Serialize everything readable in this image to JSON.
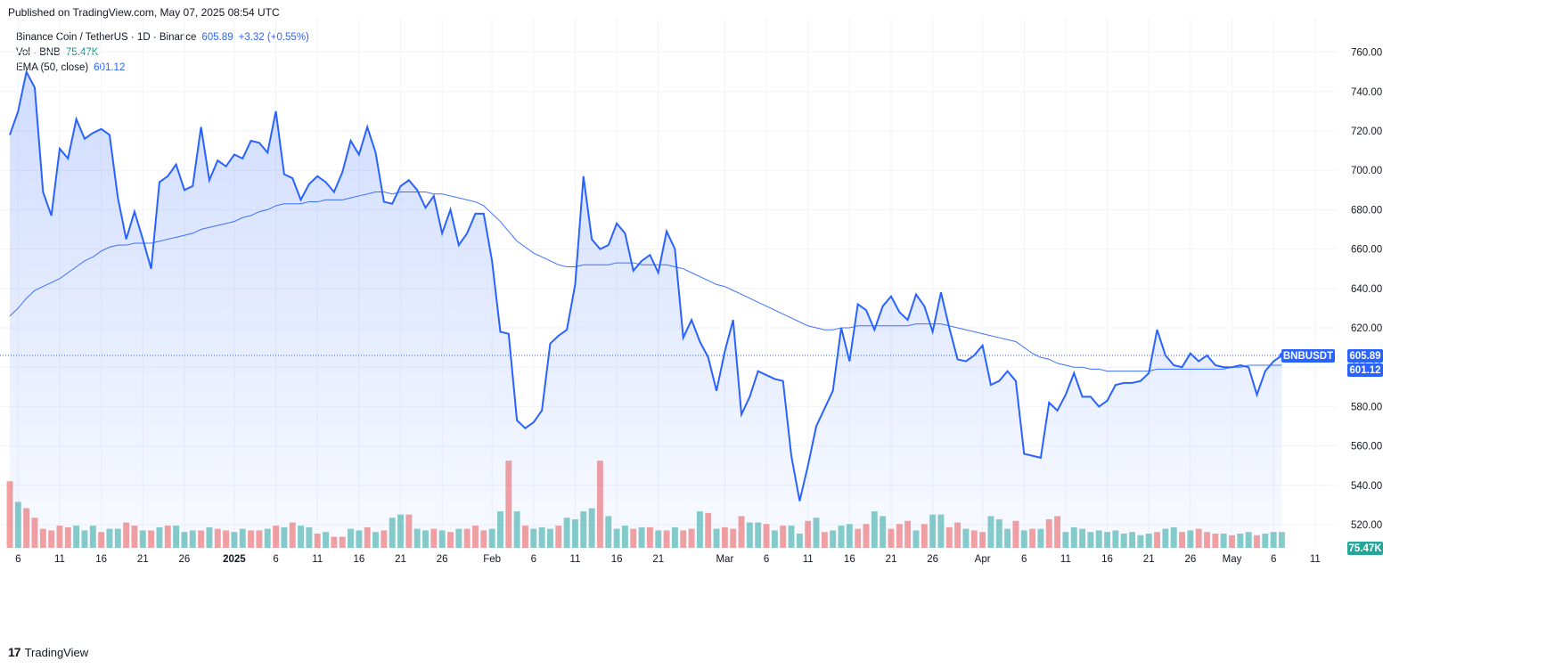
{
  "published": "Published on TradingView.com, May 07, 2025 08:54 UTC",
  "legend": {
    "symbol": "Binance Coin / TetherUS · 1D · Binance",
    "price": "605.89",
    "change": "+3.32 (+0.55%)",
    "vol_label": "Vol · BNB",
    "vol_value": "75.47K",
    "ema_label": "EMA (50, close)",
    "ema_value": "601.12"
  },
  "tags": {
    "symbol": "BNBUSDT",
    "price": "605.89",
    "ema": "601.12",
    "volume": "75.47K"
  },
  "footer": {
    "logo": "17",
    "brand": "TradingView"
  },
  "colors": {
    "line": "#2962ff",
    "up": "#26a69a",
    "down": "#ef5350",
    "grid": "#f0f3fa"
  },
  "chart_data": {
    "type": "area",
    "ylim": [
      520,
      770
    ],
    "y_ticks": [
      520,
      540,
      560,
      580,
      600,
      620,
      640,
      660,
      680,
      700,
      720,
      740,
      760
    ],
    "x_tick_labels": [
      {
        "label": "6",
        "date": "2024-12-06"
      },
      {
        "label": "11",
        "date": "2024-12-11"
      },
      {
        "label": "16",
        "date": "2024-12-16"
      },
      {
        "label": "21",
        "date": "2024-12-21"
      },
      {
        "label": "26",
        "date": "2024-12-26"
      },
      {
        "label": "2025",
        "date": "2025-01-01",
        "bold": true
      },
      {
        "label": "6",
        "date": "2025-01-06"
      },
      {
        "label": "11",
        "date": "2025-01-11"
      },
      {
        "label": "16",
        "date": "2025-01-16"
      },
      {
        "label": "21",
        "date": "2025-01-21"
      },
      {
        "label": "26",
        "date": "2025-01-26"
      },
      {
        "label": "Feb",
        "date": "2025-02-01"
      },
      {
        "label": "6",
        "date": "2025-02-06"
      },
      {
        "label": "11",
        "date": "2025-02-11"
      },
      {
        "label": "16",
        "date": "2025-02-16"
      },
      {
        "label": "21",
        "date": "2025-02-21"
      },
      {
        "label": "Mar",
        "date": "2025-03-01"
      },
      {
        "label": "6",
        "date": "2025-03-06"
      },
      {
        "label": "11",
        "date": "2025-03-11"
      },
      {
        "label": "16",
        "date": "2025-03-16"
      },
      {
        "label": "21",
        "date": "2025-03-21"
      },
      {
        "label": "26",
        "date": "2025-03-26"
      },
      {
        "label": "Apr",
        "date": "2025-04-01"
      },
      {
        "label": "6",
        "date": "2025-04-06"
      },
      {
        "label": "11",
        "date": "2025-04-11"
      },
      {
        "label": "16",
        "date": "2025-04-16"
      },
      {
        "label": "21",
        "date": "2025-04-21"
      },
      {
        "label": "26",
        "date": "2025-04-26"
      },
      {
        "label": "May",
        "date": "2025-05-01"
      },
      {
        "label": "6",
        "date": "2025-05-06"
      },
      {
        "label": "11",
        "date": "2025-05-11"
      }
    ],
    "start_date": "2024-12-05",
    "series": [
      {
        "name": "Binance Coin / TetherUS",
        "values": [
          718,
          730,
          750,
          742,
          689,
          677,
          711,
          706,
          726,
          716,
          719,
          721,
          718,
          686,
          665,
          679,
          665,
          650,
          694,
          697,
          703,
          690,
          692,
          722,
          695,
          705,
          702,
          708,
          706,
          715,
          714,
          709,
          730,
          698,
          696,
          685,
          693,
          697,
          694,
          689,
          699,
          715,
          708,
          722,
          709,
          684,
          683,
          692,
          695,
          690,
          681,
          687,
          668,
          680,
          662,
          668,
          678,
          678,
          654,
          618,
          617,
          573,
          569,
          572,
          578,
          612,
          616,
          619,
          642,
          697,
          665,
          660,
          662,
          673,
          668,
          649,
          654,
          657,
          648,
          669,
          660,
          615,
          624,
          613,
          605,
          588,
          608,
          624,
          576,
          585,
          598,
          596,
          594,
          593,
          555,
          532,
          550,
          570,
          579,
          588,
          620,
          603,
          632,
          629,
          619,
          631,
          636,
          628,
          624,
          637,
          631,
          618,
          638,
          620,
          604,
          603,
          606,
          611,
          591,
          593,
          598,
          593,
          556,
          555,
          554,
          582,
          578,
          586,
          597,
          585,
          585,
          580,
          583,
          591,
          592,
          592,
          593,
          597,
          619,
          606,
          601,
          600,
          607,
          603,
          606,
          601,
          600,
          600,
          601,
          600,
          586,
          598,
          603,
          606
        ]
      },
      {
        "name": "EMA (50, close)",
        "values": [
          626,
          630,
          635,
          639,
          641,
          643,
          645,
          648,
          651,
          654,
          656,
          659,
          661,
          662,
          662,
          663,
          663,
          663,
          664,
          665,
          666,
          667,
          668,
          670,
          671,
          672,
          673,
          674,
          676,
          677,
          679,
          680,
          682,
          683,
          683,
          683,
          684,
          684,
          685,
          685,
          685,
          686,
          687,
          688,
          689,
          689,
          688,
          689,
          689,
          689,
          689,
          688,
          688,
          687,
          686,
          685,
          684,
          682,
          678,
          674,
          669,
          664,
          661,
          658,
          656,
          654,
          652,
          651,
          651,
          652,
          652,
          652,
          652,
          653,
          653,
          653,
          652,
          652,
          652,
          652,
          651,
          650,
          648,
          646,
          644,
          642,
          641,
          639,
          637,
          635,
          633,
          631,
          629,
          627,
          625,
          623,
          621,
          620,
          619,
          619,
          620,
          620,
          621,
          621,
          621,
          621,
          621,
          621,
          621,
          622,
          622,
          622,
          622,
          621,
          620,
          619,
          618,
          617,
          616,
          615,
          614,
          613,
          610,
          607,
          605,
          604,
          602,
          601,
          600,
          600,
          599,
          599,
          598,
          598,
          598,
          598,
          598,
          598,
          599,
          599,
          599,
          599,
          599,
          599,
          599,
          599,
          599,
          600,
          600,
          601,
          601,
          601,
          601,
          601
        ]
      },
      {
        "name": "Volume",
        "values": [
          42,
          29,
          25,
          19,
          12,
          11,
          14,
          13,
          14,
          11,
          14,
          10,
          12,
          12,
          16,
          14,
          11,
          11,
          13,
          14,
          14,
          10,
          11,
          11,
          13,
          12,
          11,
          10,
          12,
          11,
          11,
          12,
          14,
          13,
          16,
          14,
          13,
          9,
          10,
          7,
          7,
          12,
          11,
          13,
          10,
          11,
          19,
          21,
          21,
          12,
          11,
          12,
          11,
          10,
          12,
          12,
          14,
          11,
          12,
          23,
          55,
          23,
          14,
          12,
          13,
          12,
          14,
          19,
          18,
          23,
          25,
          55,
          20,
          12,
          14,
          12,
          13,
          13,
          11,
          11,
          13,
          11,
          12,
          23,
          22,
          12,
          13,
          12,
          20,
          16,
          16,
          15,
          11,
          14,
          14,
          9,
          17,
          19,
          10,
          11,
          14,
          15,
          12,
          15,
          23,
          20,
          12,
          15,
          17,
          11,
          15,
          21,
          21,
          13,
          16,
          12,
          11,
          10,
          20,
          18,
          12,
          17,
          11,
          12,
          12,
          18,
          20,
          10,
          13,
          12,
          10,
          11,
          10,
          11,
          9,
          10,
          8,
          9,
          10,
          12,
          13,
          10,
          11,
          12,
          10,
          9,
          9,
          8,
          9,
          10,
          8,
          9,
          10,
          10
        ],
        "up": [
          0,
          1,
          0,
          0,
          0,
          0,
          0,
          0,
          1,
          1,
          1,
          0,
          1,
          1,
          0,
          0,
          1,
          0,
          1,
          0,
          1,
          1,
          1,
          0,
          1,
          0,
          0,
          1,
          1,
          0,
          0,
          1,
          0,
          1,
          0,
          1,
          1,
          0,
          1,
          0,
          0,
          1,
          1,
          0,
          1,
          0,
          1,
          1,
          0,
          1,
          1,
          0,
          1,
          0,
          1,
          0,
          0,
          0,
          1,
          1,
          0,
          1,
          0,
          1,
          1,
          1,
          0,
          1,
          1,
          1,
          1,
          0,
          1,
          1,
          1,
          0,
          1,
          0,
          1,
          0,
          1,
          0,
          0,
          1,
          0,
          1,
          0,
          0,
          0,
          1,
          1,
          0,
          1,
          0,
          1,
          1,
          0,
          1,
          0,
          1,
          1,
          1,
          0,
          0,
          1,
          1,
          0,
          0,
          0,
          1,
          0,
          1,
          1,
          0,
          0,
          1,
          0,
          0,
          1,
          1,
          1,
          0,
          1,
          0,
          1,
          0,
          0,
          1,
          1,
          1,
          1,
          1,
          1,
          1,
          1,
          1,
          1,
          1,
          0,
          1,
          1,
          0,
          1,
          0,
          0,
          0,
          1,
          0,
          1,
          1,
          0,
          1,
          1,
          1
        ]
      }
    ]
  }
}
